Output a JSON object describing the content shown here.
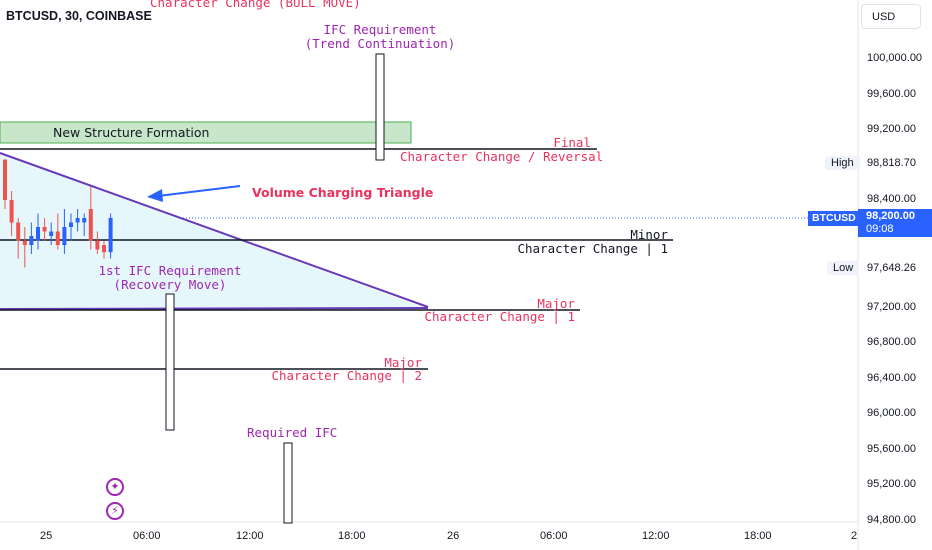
{
  "header": {
    "symbol": "BTCUSD, 30, COINBASE",
    "currency": "USD"
  },
  "colors": {
    "up": "#2962ff",
    "down": "#ef5350",
    "structure": "#9c27b0",
    "alert": "#e8335f",
    "arrow": "#2962ff",
    "zone": "#c8e6c9",
    "triangle_fill": "#e6f7fb"
  },
  "price_axis": {
    "ticks": [
      "100,000.00",
      "99,600.00",
      "99,200.00",
      "98,400.00",
      "97,200.00",
      "96,800.00",
      "96,400.00",
      "96,000.00",
      "95,600.00",
      "95,200.00",
      "94,800.00"
    ],
    "high_label": "High",
    "high_value": "98,818.70",
    "last_symbol": "BTCUSD",
    "last_value": "98,200.00",
    "countdown": "09:08",
    "low_label": "Low",
    "low_value": "97,648.26"
  },
  "time_axis": {
    "ticks": [
      "25",
      "06:00",
      "12:00",
      "18:00",
      "26",
      "06:00",
      "12:00",
      "18:00",
      "2"
    ]
  },
  "annotations": {
    "top_cut": "Character Change (BULL MOVE)",
    "ifc_top_1": "IFC Requirement",
    "ifc_top_2": "(Trend Continuation)",
    "zone_label": "New Structure Formation",
    "final_1": "Final",
    "final_2": "Character Change / Reversal",
    "triangle_label": "Volume Charging Triangle",
    "minor_1": "Minor",
    "minor_2": "Character Change | 1",
    "ifc_rec_1": "1st IFC Requirement",
    "ifc_rec_2": "(Recovery Move)",
    "major1_1": "Major",
    "major1_2": "Character Change | 1",
    "major2_1": "Major",
    "major2_2": "Character Change | 2",
    "required_ifc": "Required IFC"
  },
  "chart_data": {
    "type": "candlestick",
    "title": "BTCUSD, 30, COINBASE",
    "ylim": [
      94700,
      100500
    ],
    "levels": [
      {
        "name": "Final Character Change / Reversal",
        "price": 99000
      },
      {
        "name": "Minor Character Change | 1",
        "price": 97920
      },
      {
        "name": "Major Character Change | 1",
        "price": 97130
      },
      {
        "name": "Major Character Change | 2",
        "price": 96460
      }
    ],
    "candles": [
      {
        "o": 98850,
        "h": 98850,
        "l": 98300,
        "c": 98400
      },
      {
        "o": 98400,
        "h": 98500,
        "l": 98000,
        "c": 98150
      },
      {
        "o": 98150,
        "h": 98200,
        "l": 97750,
        "c": 97950
      },
      {
        "o": 97950,
        "h": 98100,
        "l": 97650,
        "c": 97900
      },
      {
        "o": 97900,
        "h": 98150,
        "l": 97800,
        "c": 98000
      },
      {
        "o": 97950,
        "h": 98250,
        "l": 97850,
        "c": 98100
      },
      {
        "o": 98100,
        "h": 98200,
        "l": 97950,
        "c": 98050
      },
      {
        "o": 98000,
        "h": 98150,
        "l": 97900,
        "c": 98050
      },
      {
        "o": 98050,
        "h": 98250,
        "l": 97850,
        "c": 97900
      },
      {
        "o": 97900,
        "h": 98300,
        "l": 97800,
        "c": 98100
      },
      {
        "o": 98100,
        "h": 98250,
        "l": 97950,
        "c": 98150
      },
      {
        "o": 98150,
        "h": 98300,
        "l": 98050,
        "c": 98200
      },
      {
        "o": 98150,
        "h": 98250,
        "l": 98000,
        "c": 98200
      },
      {
        "o": 98300,
        "h": 98550,
        "l": 97850,
        "c": 97950
      },
      {
        "o": 97950,
        "h": 98050,
        "l": 97800,
        "c": 97850
      },
      {
        "o": 97900,
        "h": 97950,
        "l": 97750,
        "c": 97820
      },
      {
        "o": 97820,
        "h": 98250,
        "l": 97750,
        "c": 98200
      }
    ]
  }
}
